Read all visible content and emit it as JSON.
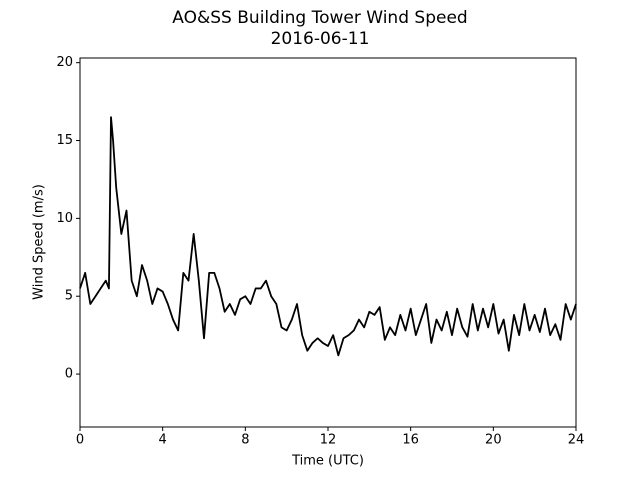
{
  "chart_data": {
    "type": "line",
    "title": "AO&SS Building Tower Wind Speed",
    "subtitle": "2016-06-11",
    "x_label": "Time (UTC)",
    "y_label": "Wind Speed (m/s)",
    "xlim": [
      0,
      24
    ],
    "xticks": [
      0,
      4,
      8,
      12,
      16,
      20,
      24
    ],
    "ylim": [
      -3.4,
      20.3
    ],
    "yticks": [
      0,
      5,
      10,
      15,
      20
    ],
    "x": [
      0,
      0.25,
      0.5,
      0.75,
      1.0,
      1.25,
      1.4,
      1.5,
      1.6,
      1.75,
      2.0,
      2.25,
      2.5,
      2.75,
      3.0,
      3.25,
      3.5,
      3.75,
      4.0,
      4.25,
      4.5,
      4.75,
      5.0,
      5.25,
      5.5,
      5.75,
      6.0,
      6.25,
      6.5,
      6.75,
      7.0,
      7.25,
      7.5,
      7.75,
      8.0,
      8.25,
      8.5,
      8.75,
      9.0,
      9.25,
      9.5,
      9.75,
      10.0,
      10.25,
      10.5,
      10.75,
      11.0,
      11.25,
      11.5,
      11.75,
      12.0,
      12.25,
      12.5,
      12.75,
      13.0,
      13.25,
      13.5,
      13.75,
      14.0,
      14.25,
      14.5,
      14.75,
      15.0,
      15.25,
      15.5,
      15.75,
      16.0,
      16.25,
      16.5,
      16.75,
      17.0,
      17.25,
      17.5,
      17.75,
      18.0,
      18.25,
      18.5,
      18.75,
      19.0,
      19.25,
      19.5,
      19.75,
      20.0,
      20.25,
      20.5,
      20.75,
      21.0,
      21.25,
      21.5,
      21.75,
      22.0,
      22.25,
      22.5,
      22.75,
      23.0,
      23.25,
      23.5,
      23.75,
      24.0
    ],
    "series": [
      {
        "name": "Wind Speed",
        "color": "#000000",
        "values": [
          5.5,
          6.5,
          4.5,
          5,
          5.5,
          6,
          5.5,
          16.5,
          15,
          12,
          9,
          10.5,
          6,
          5,
          7,
          6,
          4.5,
          5.5,
          5.3,
          4.5,
          3.5,
          2.8,
          6.5,
          6,
          9,
          6,
          2.3,
          6.5,
          6.5,
          5.5,
          4,
          4.5,
          3.8,
          4.8,
          5,
          4.5,
          5.5,
          5.5,
          6,
          5,
          4.5,
          3,
          2.8,
          3.5,
          4.5,
          2.5,
          1.5,
          2,
          2.3,
          2,
          1.8,
          2.5,
          1.2,
          2.3,
          2.5,
          2.8,
          3.5,
          3.0,
          4,
          3.8,
          4.3,
          2.2,
          3,
          2.5,
          3.8,
          2.8,
          4.2,
          2.5,
          3.5,
          4.5,
          2.0,
          3.5,
          2.8,
          4,
          2.5,
          4.2,
          3,
          2.4,
          4.5,
          2.8,
          4.2,
          3,
          4.5,
          2.6,
          3.5,
          1.5,
          3.8,
          2.5,
          4.5,
          2.8,
          3.8,
          2.7,
          4.2,
          2.5,
          3.2,
          2.2,
          4.5,
          3.5,
          4.5
        ]
      }
    ]
  }
}
